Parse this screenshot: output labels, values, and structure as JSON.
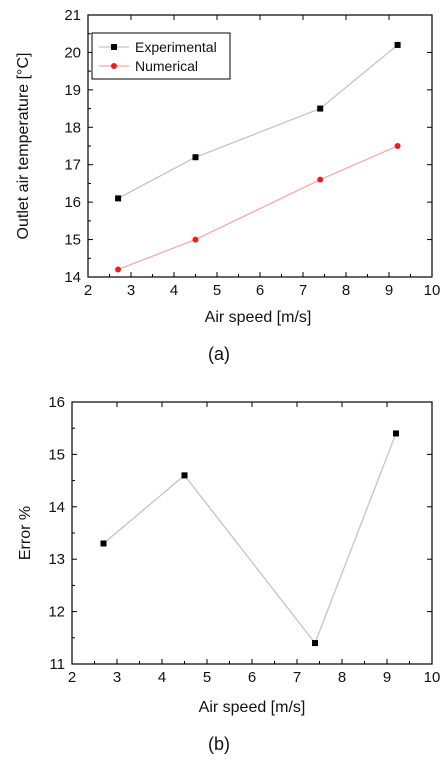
{
  "chart_data": [
    {
      "type": "line",
      "caption": "(a)",
      "xlabel": "Air speed [m/s]",
      "ylabel": "Outlet air temperature [°C]",
      "xlim": [
        2,
        10
      ],
      "ylim": [
        14,
        21
      ],
      "xticks": [
        2,
        3,
        4,
        5,
        6,
        7,
        8,
        9,
        10
      ],
      "yticks": [
        14,
        15,
        16,
        17,
        18,
        19,
        20,
        21
      ],
      "x": [
        2.7,
        4.5,
        7.4,
        9.2
      ],
      "grid": false,
      "legend": "top-left",
      "series": [
        {
          "name": "Experimental",
          "values": [
            16.1,
            17.2,
            18.5,
            20.2
          ],
          "marker": "square",
          "marker_color": "#000000",
          "line_color": "#c4c4c4"
        },
        {
          "name": "Numerical",
          "values": [
            14.2,
            15.0,
            16.6,
            17.5
          ],
          "marker": "circle",
          "marker_color": "#ee1c1c",
          "line_color": "#f5a9a9"
        }
      ]
    },
    {
      "type": "line",
      "caption": "(b)",
      "xlabel": "Air speed [m/s]",
      "ylabel": "Error %",
      "xlim": [
        2,
        10
      ],
      "ylim": [
        11,
        16
      ],
      "xticks": [
        2,
        3,
        4,
        5,
        6,
        7,
        8,
        9,
        10
      ],
      "yticks": [
        11,
        12,
        13,
        14,
        15,
        16
      ],
      "x": [
        2.7,
        4.5,
        7.4,
        9.2
      ],
      "grid": false,
      "series": [
        {
          "values": [
            13.3,
            14.6,
            11.4,
            15.4
          ],
          "marker": "square",
          "marker_color": "#000000",
          "line_color": "#c4c4c4"
        }
      ]
    }
  ]
}
